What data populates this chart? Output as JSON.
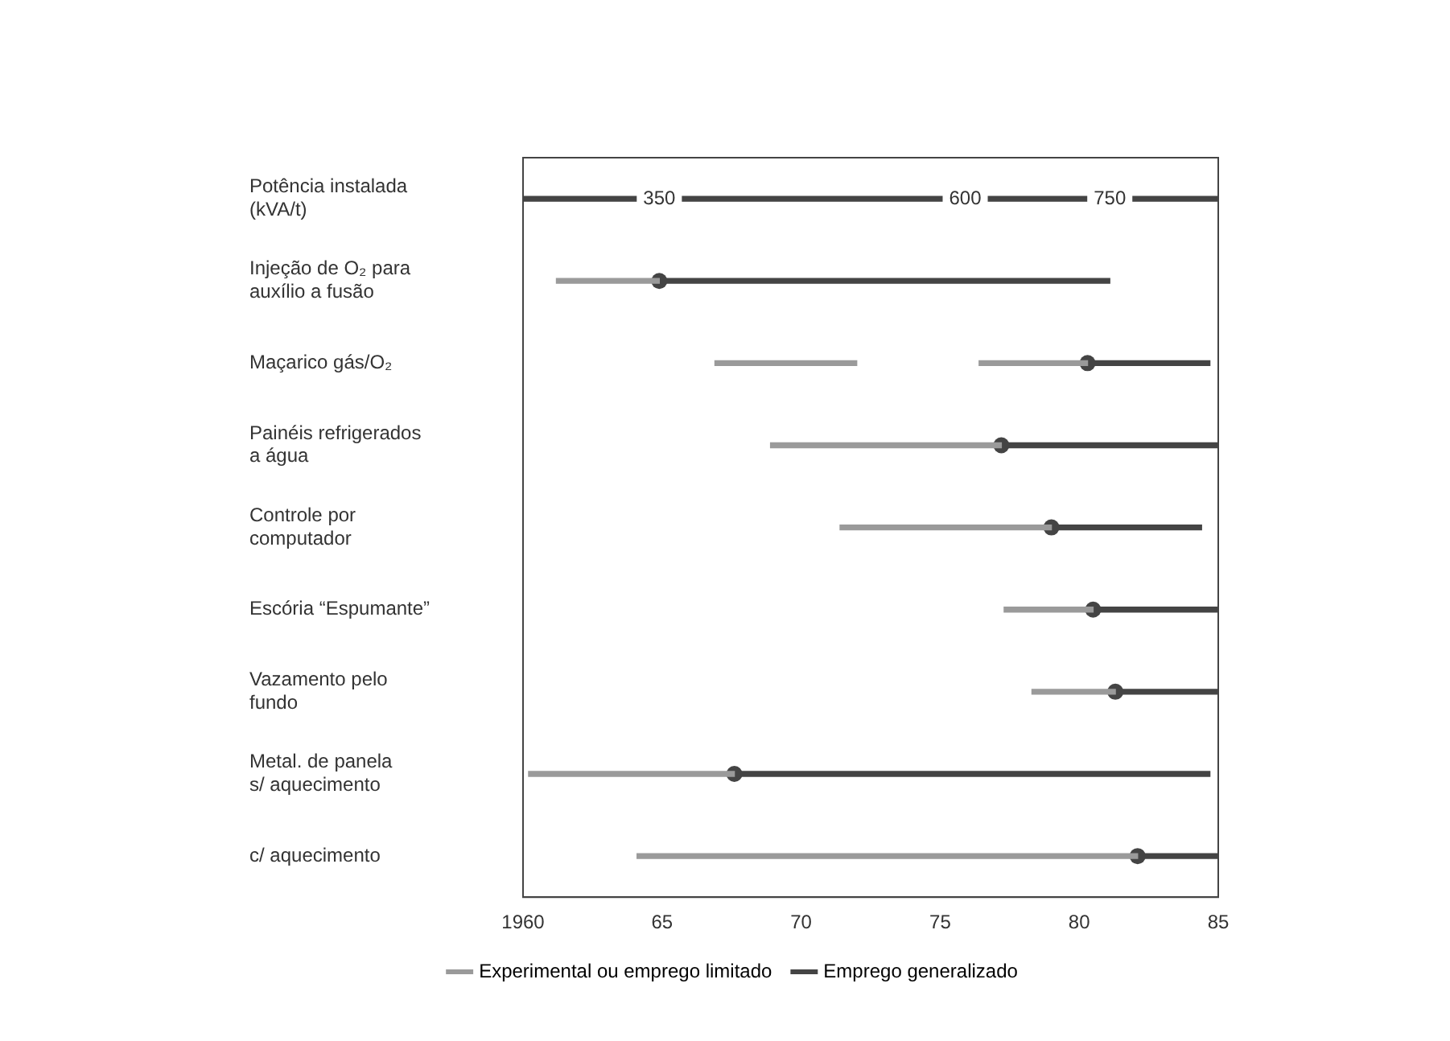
{
  "chart_data": {
    "type": "bar",
    "orientation": "horizontal",
    "legend": "bottom",
    "categories": [
      "Potência instalada\n(kVA/t)",
      "Injeção de O₂ para\nauxílio a fusão",
      "Maçarico gás/O₂",
      "Painéis refrigerados\na água",
      "Controle por\ncomputador",
      "Escória “Espumante”",
      "Vazamento pelo\nfundo",
      "Metal. de panela\ns/ aquecimento",
      "c/ aquecimento"
    ],
    "xlim": [
      1960,
      1985
    ],
    "xticks": [
      1960,
      {
        "value": 1965,
        "label": "65"
      },
      {
        "value": 1970,
        "label": "70"
      },
      {
        "value": 1975,
        "label": "75"
      },
      {
        "value": 1980,
        "label": "80"
      },
      {
        "value": 1985,
        "label": "85"
      }
    ],
    "series": [
      {
        "name": "Experimental ou emprego limitado",
        "color": "#9a9a9a",
        "base": [
          null,
          1961.2,
          1966.9,
          1968.9,
          1971.4,
          1977.3,
          1978.3,
          1960.2,
          1964.1
        ],
        "values": [
          null,
          3.7,
          5.1,
          8.3,
          7.6,
          3.2,
          3.0,
          7.4,
          18.0
        ]
      },
      {
        "color": "#9a9a9a",
        "base": [
          null,
          null,
          1976.4,
          null,
          null,
          null,
          null,
          null,
          null
        ],
        "values": [
          null,
          null,
          3.9,
          null,
          null,
          null,
          null,
          null,
          null
        ]
      },
      {
        "name": "Emprego generalizado",
        "color": "#444444",
        "base": [
          null,
          1964.9,
          1980.3,
          1977.2,
          1979.0,
          1980.5,
          1981.3,
          1967.6,
          1982.1
        ],
        "values": [
          null,
          16.2,
          4.4,
          7.8,
          5.4,
          4.5,
          3.7,
          17.1,
          2.9
        ]
      },
      {
        "color": "#444444",
        "base": [
          1960,
          null,
          null,
          null,
          null,
          null,
          null,
          null,
          null
        ],
        "values": [
          25,
          null,
          null,
          null,
          null,
          null,
          null,
          null,
          null
        ]
      },
      {
        "type": "scatter",
        "color": "#444444",
        "marker": "circle",
        "values": [
          null,
          1964.9,
          1980.3,
          1977.2,
          1979.0,
          1980.5,
          1981.3,
          1967.6,
          1982.1
        ]
      }
    ],
    "annotations": [
      {
        "text": "350",
        "x": 1964.9,
        "y": "Potência instalada\n(kVA/t)"
      },
      {
        "text": "600",
        "x": 1975.9,
        "y": "Potência instalada\n(kVA/t)"
      },
      {
        "text": "750",
        "x": 1981.1,
        "y": "Potência instalada\n(kVA/t)"
      }
    ]
  }
}
